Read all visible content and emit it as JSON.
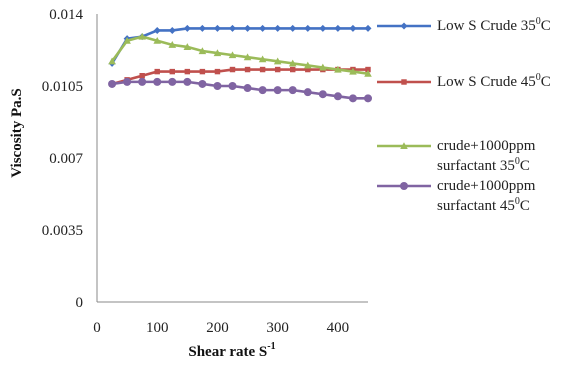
{
  "chart_data": {
    "type": "line",
    "xlabel": "Shear rate S",
    "xlabel_sup": "-1",
    "ylabel": "Viscosity Pa.S",
    "xlim": [
      0,
      450
    ],
    "ylim": [
      0,
      0.014
    ],
    "xticks": [
      0,
      100,
      200,
      300,
      400
    ],
    "xtick_labels": [
      "0",
      "100",
      "200",
      "300",
      "400"
    ],
    "yticks": [
      0,
      0.0035,
      0.007,
      0.0105,
      0.014
    ],
    "ytick_labels": [
      "0",
      "0.0035",
      "0.007",
      "0.0105",
      "0.014"
    ],
    "grid": false,
    "legend_position": "right",
    "x": [
      25,
      50,
      75,
      100,
      125,
      150,
      175,
      200,
      225,
      250,
      275,
      300,
      325,
      350,
      375,
      400,
      425,
      450
    ],
    "series": [
      {
        "legend_lines": [
          "Low S Crude  35",
          "C"
        ],
        "legend_sup": "0",
        "color": "#4472C4",
        "marker": "diamond",
        "values": [
          0.0116,
          0.0128,
          0.0129,
          0.0132,
          0.0132,
          0.0133,
          0.0133,
          0.0133,
          0.0133,
          0.0133,
          0.0133,
          0.0133,
          0.0133,
          0.0133,
          0.0133,
          0.0133,
          0.0133,
          0.0133
        ]
      },
      {
        "legend_lines": [
          "Low S Crude  45",
          "C"
        ],
        "legend_sup": "0",
        "color": "#C0504D",
        "marker": "square",
        "values": [
          0.0106,
          0.0108,
          0.011,
          0.0112,
          0.0112,
          0.0112,
          0.0112,
          0.0112,
          0.0113,
          0.0113,
          0.0113,
          0.0113,
          0.0113,
          0.0113,
          0.0113,
          0.0113,
          0.0113,
          0.0113
        ]
      },
      {
        "legend_lines": [
          "crude+1000ppm",
          "surfactant 35",
          "C"
        ],
        "legend_sup": "0",
        "color": "#9BBB59",
        "marker": "triangle",
        "values": [
          0.0117,
          0.0127,
          0.0129,
          0.0127,
          0.0125,
          0.0124,
          0.0122,
          0.0121,
          0.012,
          0.0119,
          0.0118,
          0.0117,
          0.0116,
          0.0115,
          0.0114,
          0.0113,
          0.0112,
          0.0111
        ]
      },
      {
        "legend_lines": [
          " crude+1000ppm",
          "surfactant 45",
          "C"
        ],
        "legend_sup": "0",
        "color": "#8064A2",
        "marker": "circle",
        "values": [
          0.0106,
          0.0107,
          0.0107,
          0.0107,
          0.0107,
          0.0107,
          0.0106,
          0.0105,
          0.0105,
          0.0104,
          0.0103,
          0.0103,
          0.0103,
          0.0102,
          0.0101,
          0.01,
          0.0099,
          0.0099
        ]
      }
    ]
  }
}
